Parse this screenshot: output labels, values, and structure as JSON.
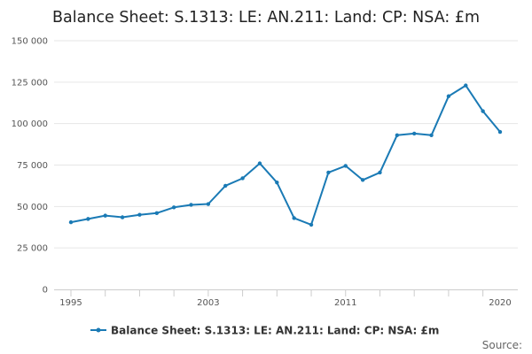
{
  "colors": {
    "series": "#1a7ab5",
    "grid": "#e6e6e6",
    "axis": "#cccccc"
  },
  "chart_data": {
    "type": "line",
    "title": "Balance Sheet: S.1313: LE: AN.211: Land: CP: NSA: £m",
    "ylim": [
      0,
      150000
    ],
    "y_ticks": [
      0,
      25000,
      50000,
      75000,
      100000,
      125000,
      150000
    ],
    "y_tick_labels": [
      "0",
      "25 000",
      "50 000",
      "75 000",
      "100 000",
      "125 000",
      "150 000"
    ],
    "x_ticks": [
      1995,
      2003,
      2011,
      2020
    ],
    "x_tick_labels": [
      "1995",
      "2003",
      "2011",
      "2020"
    ],
    "xlim": [
      1995,
      2020
    ],
    "grid": true,
    "legend_position": "bottom",
    "series": [
      {
        "name": "Balance Sheet: S.1313: LE: AN.211: Land: CP: NSA: £m",
        "x": [
          1995,
          1996,
          1997,
          1998,
          1999,
          2000,
          2001,
          2002,
          2003,
          2004,
          2005,
          2006,
          2007,
          2008,
          2009,
          2010,
          2011,
          2012,
          2013,
          2014,
          2015,
          2016,
          2017,
          2018,
          2019,
          2020
        ],
        "values": [
          40500,
          42500,
          44500,
          43500,
          45000,
          46000,
          49500,
          51000,
          51500,
          62500,
          67000,
          76000,
          64500,
          43000,
          39000,
          70500,
          74500,
          66000,
          70500,
          93000,
          94000,
          93000,
          116500,
          123000,
          107500,
          95000
        ]
      }
    ]
  },
  "source_label": "Source:"
}
